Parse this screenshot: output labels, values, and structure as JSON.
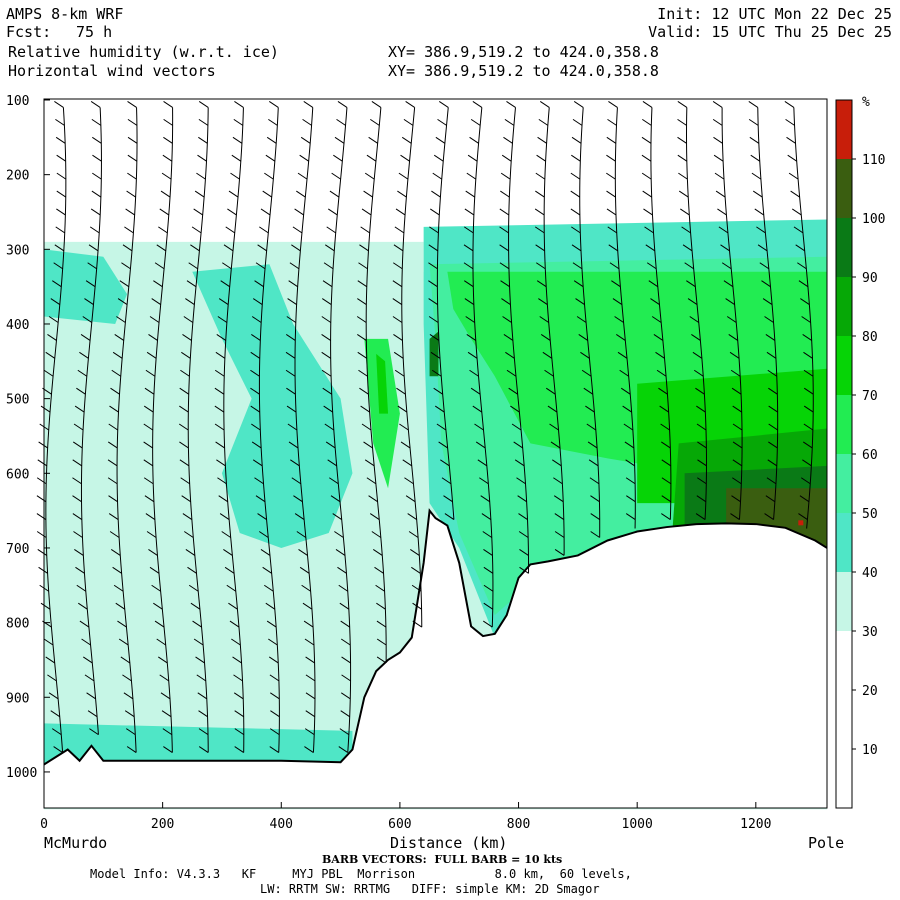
{
  "header": {
    "model": "AMPS 8-km WRF",
    "fcst_label": "Fcst:",
    "fcst_value": "75 h",
    "field1": "Relative humidity (w.r.t. ice)",
    "field2": "Horizontal wind vectors",
    "xy1": "XY= 386.9,519.2 to 424.0,358.8",
    "xy2": "XY= 386.9,519.2 to 424.0,358.8",
    "init": "Init: 12 UTC Mon 22 Dec 25",
    "valid": "Valid: 15 UTC Thu 25 Dec 25"
  },
  "footer": {
    "left_end": "McMurdo",
    "right_end": "Pole",
    "barb_note": "BARB VECTORS:  FULL BARB = 10 kts",
    "model_info": "Model Info: V4.3.3   KF     MYJ PBL  Morrison           8.0 km,  60 levels,",
    "physics": "LW: RRTM SW: RRTMG   DIFF: simple KM: 2D Smagor"
  },
  "colors": {
    "rh_30_40": "#c6f6e6",
    "rh_40_50": "#4fe6c6",
    "rh_50_60": "#44eea0",
    "rh_60_70": "#22ec52",
    "rh_70_80": "#06d406",
    "rh_80_90": "#06a806",
    "rh_90_100": "#0a7a16",
    "rh_100_110": "#3a5e10",
    "rh_110_plus": "#c81e0a",
    "terrain_line": "#000000"
  },
  "chart_data": {
    "type": "heatmap",
    "title": "Relative humidity (w.r.t. ice)",
    "xlabel": "Distance (km)",
    "ylabel": "",
    "xlim": [
      0,
      1320
    ],
    "ylim": [
      1050,
      100
    ],
    "x_ticks": [
      "0",
      "200",
      "400",
      "600",
      "800",
      "1000",
      "1200"
    ],
    "x_tick_values": [
      0,
      200,
      400,
      600,
      800,
      1000,
      1200
    ],
    "y_ticks": [
      "100",
      "200",
      "300",
      "400",
      "500",
      "600",
      "700",
      "800",
      "900",
      "1000"
    ],
    "y_tick_values": [
      100,
      200,
      300,
      400,
      500,
      600,
      700,
      800,
      900,
      1000
    ],
    "colorbar": {
      "unit": "%",
      "labels": [
        "10",
        "20",
        "30",
        "40",
        "50",
        "60",
        "70",
        "80",
        "90",
        "100",
        "110"
      ],
      "bounds": [
        0,
        10,
        20,
        30,
        40,
        50,
        60,
        70,
        80,
        90,
        100,
        110,
        120
      ],
      "colors": [
        "#ffffff",
        "#ffffff",
        "#ffffff",
        "#c6f6e6",
        "#4fe6c6",
        "#44eea0",
        "#22ec52",
        "#06d406",
        "#06a806",
        "#0a7a16",
        "#3a5e10",
        "#c81e0a"
      ]
    },
    "terrain_pressure_hPa": {
      "x": [
        0,
        20,
        40,
        60,
        80,
        100,
        150,
        200,
        300,
        400,
        500,
        520,
        540,
        560,
        580,
        600,
        620,
        640,
        650,
        660,
        670,
        680,
        700,
        720,
        740,
        760,
        780,
        800,
        820,
        850,
        900,
        950,
        1000,
        1050,
        1100,
        1150,
        1200,
        1250,
        1300,
        1320
      ],
      "p": [
        990,
        980,
        970,
        985,
        965,
        985,
        985,
        985,
        985,
        985,
        987,
        970,
        900,
        865,
        850,
        840,
        820,
        720,
        650,
        660,
        665,
        670,
        720,
        805,
        818,
        815,
        790,
        740,
        722,
        718,
        710,
        690,
        678,
        672,
        668,
        667,
        668,
        673,
        690,
        700
      ]
    }
  }
}
